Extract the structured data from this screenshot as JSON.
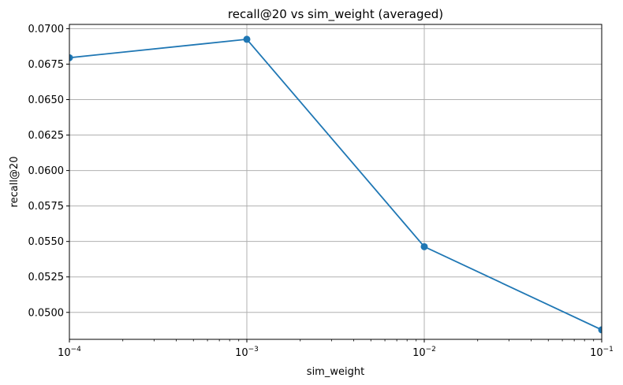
{
  "chart_data": {
    "type": "line",
    "title": "recall@20 vs sim_weight (averaged)",
    "xlabel": "sim_weight",
    "ylabel": "recall@20",
    "xscale": "log",
    "xlim": [
      0.0001,
      0.1
    ],
    "ylim": [
      0.0481,
      0.0703
    ],
    "grid": true,
    "x_ticks": [
      {
        "value": 0.0001,
        "base": "10",
        "exp": "−4"
      },
      {
        "value": 0.001,
        "base": "10",
        "exp": "−3"
      },
      {
        "value": 0.01,
        "base": "10",
        "exp": "−2"
      },
      {
        "value": 0.1,
        "base": "10",
        "exp": "−1"
      }
    ],
    "y_ticks": [
      "0.0500",
      "0.0525",
      "0.0550",
      "0.0575",
      "0.0600",
      "0.0625",
      "0.0650",
      "0.0675",
      "0.0700"
    ],
    "series": [
      {
        "color": "#1f77b4",
        "marker": "circle",
        "x": [
          0.0001,
          0.001,
          0.01,
          0.1
        ],
        "y": [
          0.06795,
          0.06925,
          0.05463,
          0.04877
        ]
      }
    ]
  }
}
